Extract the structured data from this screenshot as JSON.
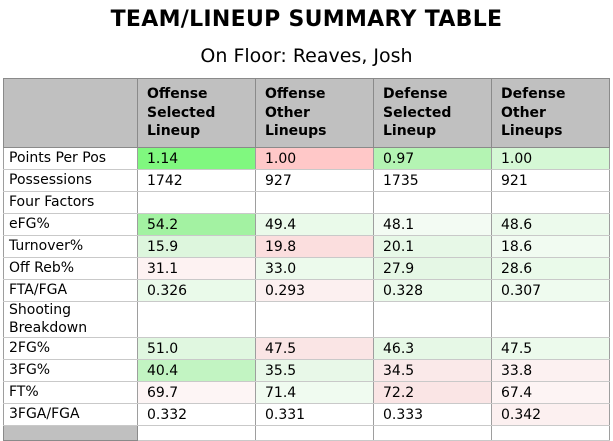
{
  "title": "TEAM/LINEUP SUMMARY TABLE",
  "subtitle": "On Floor: Reaves, Josh",
  "colors": {
    "header_bg": "#c0c0c0",
    "strong_green": "#80f87f",
    "strong_pink": "#ffc8c8",
    "border_dark": "#8a8a8a",
    "border_light": "#c9c9c9"
  },
  "chart_data": {
    "type": "table",
    "title": "TEAM/LINEUP SUMMARY TABLE",
    "subtitle": "On Floor: Reaves, Josh",
    "columns": [
      "Offense Selected Lineup",
      "Offense Other Lineups",
      "Defense Selected Lineup",
      "Defense Other Lineups"
    ],
    "rows": [
      {
        "label": "Points Per Pos",
        "section": false,
        "values": [
          "1.14",
          "1.00",
          "0.97",
          "1.00"
        ],
        "bg": [
          "#80f87f",
          "#ffc8c8",
          "#b4f4b3",
          "#d5f8d5"
        ]
      },
      {
        "label": "Possessions",
        "section": false,
        "values": [
          "1742",
          "927",
          "1735",
          "921"
        ],
        "bg": [
          "",
          "",
          "",
          ""
        ]
      },
      {
        "label": "Four Factors",
        "section": true,
        "values": [
          "",
          "",
          "",
          ""
        ],
        "bg": [
          "",
          "",
          "",
          ""
        ]
      },
      {
        "label": "eFG%",
        "section": false,
        "values": [
          "54.2",
          "49.4",
          "48.1",
          "48.6"
        ],
        "bg": [
          "#a3f2a2",
          "#eafaea",
          "#f3fbf3",
          "#ecfaec"
        ]
      },
      {
        "label": "Turnover%",
        "section": false,
        "values": [
          "15.9",
          "19.8",
          "20.1",
          "18.6"
        ],
        "bg": [
          "#ddf6dd",
          "#fbdede",
          "#e7f8e7",
          "#f1fbf1"
        ]
      },
      {
        "label": "Off Reb%",
        "section": false,
        "values": [
          "31.1",
          "33.0",
          "27.9",
          "28.6"
        ],
        "bg": [
          "#fdf2f2",
          "#ecfaec",
          "#e5f7e5",
          "#eafaea"
        ]
      },
      {
        "label": "FTA/FGA",
        "section": false,
        "values": [
          "0.326",
          "0.293",
          "0.328",
          "0.307"
        ],
        "bg": [
          "#eafaea",
          "#fcf0f0",
          "#ebfaeb",
          "#effbef"
        ]
      },
      {
        "label": "Shooting Breakdown",
        "section": true,
        "values": [
          "",
          "",
          "",
          ""
        ],
        "bg": [
          "",
          "",
          "",
          ""
        ]
      },
      {
        "label": "2FG%",
        "section": false,
        "values": [
          "51.0",
          "47.5",
          "46.3",
          "47.5"
        ],
        "bg": [
          "#e0f7e0",
          "#fae5e5",
          "#e6f8e6",
          "#ecfaec"
        ]
      },
      {
        "label": "3FG%",
        "section": false,
        "values": [
          "40.4",
          "35.5",
          "34.5",
          "33.8"
        ],
        "bg": [
          "#c2f4c2",
          "#e8f8e8",
          "#fae9e9",
          "#fcf1f1"
        ]
      },
      {
        "label": "FT%",
        "section": false,
        "values": [
          "69.7",
          "71.4",
          "72.2",
          "67.4"
        ],
        "bg": [
          "#fdf5f5",
          "#f0fbf0",
          "#fae5e5",
          "#fdf4f4"
        ]
      },
      {
        "label": "3FGA/FGA",
        "section": false,
        "values": [
          "0.332",
          "0.331",
          "0.333",
          "0.342"
        ],
        "bg": [
          "",
          "",
          "",
          "#fcf0f0"
        ]
      }
    ]
  }
}
